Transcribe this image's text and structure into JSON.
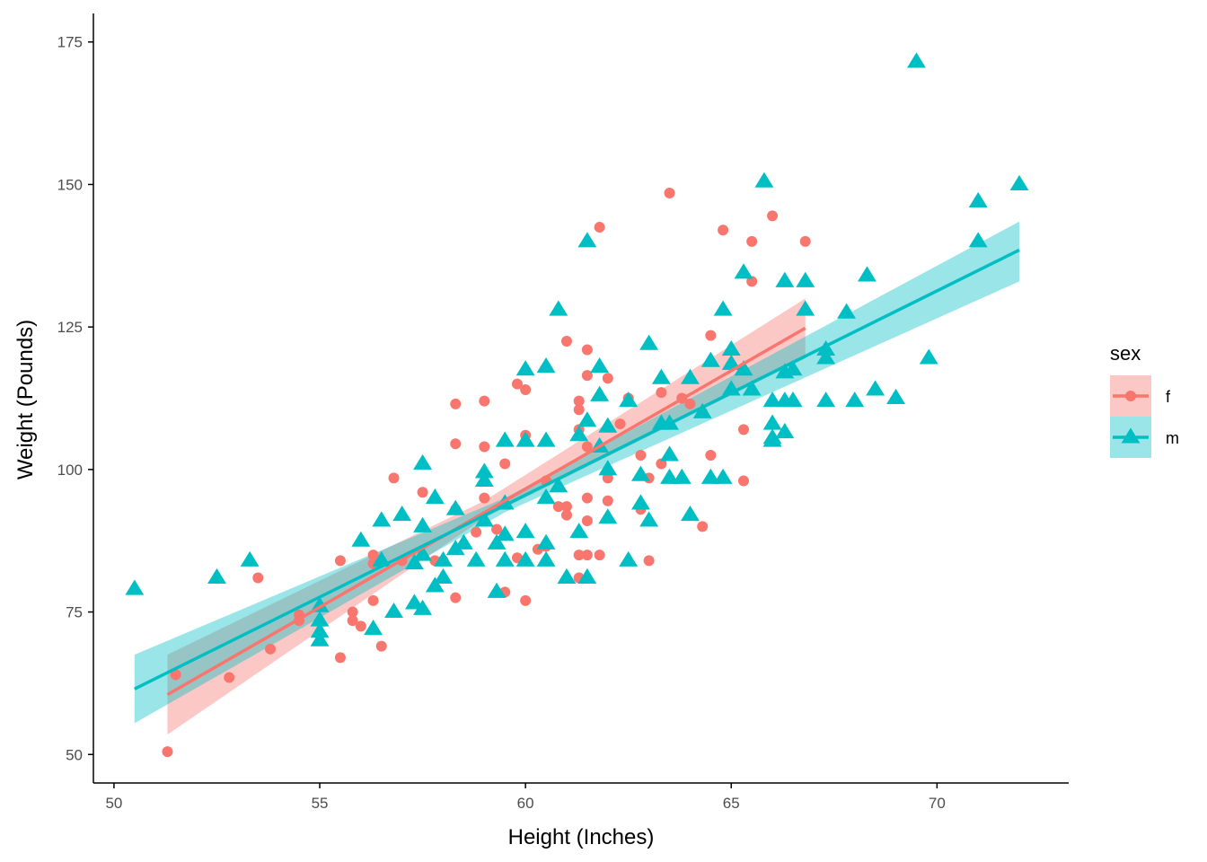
{
  "chart_data": {
    "type": "scatter",
    "xlabel": "Height (Inches)",
    "ylabel": "Weight (Pounds)",
    "xlim": [
      49.5,
      73.2
    ],
    "ylim": [
      45,
      180
    ],
    "x_ticks": [
      "50",
      "55",
      "60",
      "65",
      "70"
    ],
    "y_ticks": [
      "50",
      "75",
      "100",
      "125",
      "150",
      "175"
    ],
    "grid": false,
    "legend": {
      "title": "sex",
      "position": "right",
      "entries": [
        "f",
        "m"
      ]
    },
    "colors": {
      "f": "#F8766D",
      "m": "#00BFC4",
      "f_band": "#F8766D",
      "m_band": "#00BFC4",
      "axis": "#000000"
    },
    "series": [
      {
        "name": "f",
        "marker": "circle",
        "fit": {
          "x": [
            51.3,
            66.8
          ],
          "y": [
            60.5,
            124.8
          ]
        },
        "band": {
          "x": [
            51.3,
            59.0,
            66.8
          ],
          "upper": [
            67.5,
            94.5,
            130.0
          ],
          "lower": [
            53.5,
            91.5,
            119.5
          ]
        },
        "points": [
          [
            51.3,
            50.5
          ],
          [
            51.5,
            64.0
          ],
          [
            52.8,
            63.5
          ],
          [
            53.5,
            81.0
          ],
          [
            53.8,
            68.5
          ],
          [
            54.5,
            74.5
          ],
          [
            54.5,
            73.5
          ],
          [
            55.5,
            67.0
          ],
          [
            55.5,
            84.0
          ],
          [
            55.8,
            75.0
          ],
          [
            55.8,
            73.5
          ],
          [
            56.0,
            72.5
          ],
          [
            56.3,
            77.0
          ],
          [
            56.3,
            85.0
          ],
          [
            56.3,
            83.5
          ],
          [
            56.5,
            69.0
          ],
          [
            56.8,
            98.5
          ],
          [
            57.0,
            84.0
          ],
          [
            57.5,
            96.0
          ],
          [
            57.8,
            84.0
          ],
          [
            58.0,
            84.0
          ],
          [
            58.3,
            111.5
          ],
          [
            58.3,
            104.5
          ],
          [
            58.3,
            93.0
          ],
          [
            58.3,
            77.5
          ],
          [
            58.8,
            89.0
          ],
          [
            59.0,
            112.0
          ],
          [
            59.0,
            104.0
          ],
          [
            59.0,
            95.0
          ],
          [
            59.3,
            89.5
          ],
          [
            59.5,
            101.0
          ],
          [
            59.5,
            78.5
          ],
          [
            59.8,
            115.0
          ],
          [
            59.8,
            84.5
          ],
          [
            60.0,
            114.0
          ],
          [
            60.0,
            106.0
          ],
          [
            60.0,
            77.0
          ],
          [
            60.3,
            86.0
          ],
          [
            60.5,
            98.0
          ],
          [
            60.5,
            86.5
          ],
          [
            60.8,
            93.5
          ],
          [
            61.0,
            122.5
          ],
          [
            61.0,
            93.5
          ],
          [
            61.0,
            92.0
          ],
          [
            61.3,
            112.0
          ],
          [
            61.3,
            110.5
          ],
          [
            61.3,
            107.0
          ],
          [
            61.3,
            85.0
          ],
          [
            61.3,
            81.0
          ],
          [
            61.5,
            121.0
          ],
          [
            61.5,
            116.5
          ],
          [
            61.5,
            104.0
          ],
          [
            61.5,
            95.0
          ],
          [
            61.5,
            91.0
          ],
          [
            61.5,
            85.0
          ],
          [
            61.8,
            142.5
          ],
          [
            61.8,
            85.0
          ],
          [
            62.0,
            116.0
          ],
          [
            62.0,
            98.5
          ],
          [
            62.0,
            94.5
          ],
          [
            62.3,
            108.0
          ],
          [
            62.5,
            112.5
          ],
          [
            62.8,
            102.5
          ],
          [
            62.8,
            93.0
          ],
          [
            63.0,
            98.5
          ],
          [
            63.0,
            84.0
          ],
          [
            63.3,
            113.5
          ],
          [
            63.3,
            101.0
          ],
          [
            63.5,
            148.5
          ],
          [
            63.8,
            112.5
          ],
          [
            64.0,
            111.5
          ],
          [
            64.3,
            110.0
          ],
          [
            64.3,
            90.0
          ],
          [
            64.5,
            123.5
          ],
          [
            64.5,
            102.5
          ],
          [
            64.8,
            142.0
          ],
          [
            65.3,
            107.0
          ],
          [
            65.3,
            98.0
          ],
          [
            65.5,
            140.0
          ],
          [
            65.5,
            133.0
          ],
          [
            66.0,
            144.5
          ],
          [
            66.8,
            140.0
          ]
        ]
      },
      {
        "name": "m",
        "marker": "triangle",
        "fit": {
          "x": [
            50.5,
            72.0
          ],
          "y": [
            61.5,
            138.5
          ]
        },
        "band": {
          "x": [
            50.5,
            59.5,
            72.0
          ],
          "upper": [
            67.5,
            95.0,
            143.5
          ],
          "lower": [
            55.5,
            92.5,
            133.0
          ]
        },
        "points": [
          [
            50.5,
            79.0
          ],
          [
            52.5,
            81.0
          ],
          [
            53.3,
            84.0
          ],
          [
            55.0,
            76.0
          ],
          [
            55.0,
            73.5
          ],
          [
            55.0,
            71.5
          ],
          [
            55.0,
            70.0
          ],
          [
            56.0,
            87.5
          ],
          [
            56.3,
            72.0
          ],
          [
            56.5,
            91.0
          ],
          [
            56.5,
            84.0
          ],
          [
            56.8,
            75.0
          ],
          [
            57.0,
            92.0
          ],
          [
            57.3,
            83.5
          ],
          [
            57.3,
            76.5
          ],
          [
            57.5,
            101.0
          ],
          [
            57.5,
            90.0
          ],
          [
            57.5,
            85.0
          ],
          [
            57.5,
            75.5
          ],
          [
            57.8,
            95.0
          ],
          [
            57.8,
            79.5
          ],
          [
            58.0,
            81.0
          ],
          [
            58.0,
            84.0
          ],
          [
            58.3,
            93.0
          ],
          [
            58.3,
            86.0
          ],
          [
            58.5,
            87.0
          ],
          [
            58.8,
            84.0
          ],
          [
            59.0,
            99.5
          ],
          [
            59.0,
            98.0
          ],
          [
            59.0,
            91.0
          ],
          [
            59.3,
            78.5
          ],
          [
            59.3,
            87.0
          ],
          [
            59.5,
            105.0
          ],
          [
            59.5,
            94.0
          ],
          [
            59.5,
            88.5
          ],
          [
            59.5,
            84.0
          ],
          [
            60.0,
            117.5
          ],
          [
            60.0,
            105.0
          ],
          [
            60.0,
            89.0
          ],
          [
            60.0,
            84.0
          ],
          [
            60.5,
            118.0
          ],
          [
            60.5,
            105.0
          ],
          [
            60.5,
            95.0
          ],
          [
            60.5,
            87.0
          ],
          [
            60.5,
            84.0
          ],
          [
            60.8,
            128.0
          ],
          [
            60.8,
            97.0
          ],
          [
            61.0,
            81.0
          ],
          [
            61.3,
            106.0
          ],
          [
            61.3,
            89.0
          ],
          [
            61.5,
            140.0
          ],
          [
            61.5,
            108.5
          ],
          [
            61.5,
            81.0
          ],
          [
            61.8,
            118.0
          ],
          [
            61.8,
            113.0
          ],
          [
            61.8,
            104.0
          ],
          [
            62.0,
            107.5
          ],
          [
            62.0,
            100.0
          ],
          [
            62.0,
            91.5
          ],
          [
            62.5,
            112.0
          ],
          [
            62.5,
            84.0
          ],
          [
            62.8,
            99.0
          ],
          [
            62.8,
            94.0
          ],
          [
            63.0,
            91.0
          ],
          [
            63.0,
            122.0
          ],
          [
            63.3,
            116.0
          ],
          [
            63.3,
            108.0
          ],
          [
            63.5,
            108.0
          ],
          [
            63.5,
            102.5
          ],
          [
            63.5,
            98.5
          ],
          [
            63.8,
            98.5
          ],
          [
            64.0,
            116.0
          ],
          [
            64.0,
            92.0
          ],
          [
            64.3,
            110.0
          ],
          [
            64.5,
            119.0
          ],
          [
            64.5,
            98.5
          ],
          [
            64.8,
            128.0
          ],
          [
            64.8,
            98.5
          ],
          [
            65.0,
            121.0
          ],
          [
            65.0,
            114.0
          ],
          [
            65.0,
            118.5
          ],
          [
            65.3,
            134.5
          ],
          [
            65.3,
            117.5
          ],
          [
            65.5,
            114.0
          ],
          [
            65.8,
            150.5
          ],
          [
            66.0,
            112.0
          ],
          [
            66.0,
            108.0
          ],
          [
            66.0,
            105.5
          ],
          [
            66.0,
            105.0
          ],
          [
            66.3,
            133.0
          ],
          [
            66.3,
            117.0
          ],
          [
            66.3,
            106.5
          ],
          [
            66.3,
            112.0
          ],
          [
            66.5,
            112.0
          ],
          [
            66.5,
            117.5
          ],
          [
            66.5,
            112.0
          ],
          [
            66.8,
            133.0
          ],
          [
            66.8,
            128.0
          ],
          [
            67.3,
            121.0
          ],
          [
            67.3,
            119.5
          ],
          [
            67.3,
            112.0
          ],
          [
            67.8,
            127.5
          ],
          [
            68.0,
            112.0
          ],
          [
            68.3,
            134.0
          ],
          [
            68.5,
            114.0
          ],
          [
            69.0,
            112.5
          ],
          [
            69.5,
            171.5
          ],
          [
            69.8,
            119.5
          ],
          [
            71.0,
            147.0
          ],
          [
            71.0,
            140.0
          ],
          [
            72.0,
            150.0
          ]
        ]
      }
    ]
  }
}
